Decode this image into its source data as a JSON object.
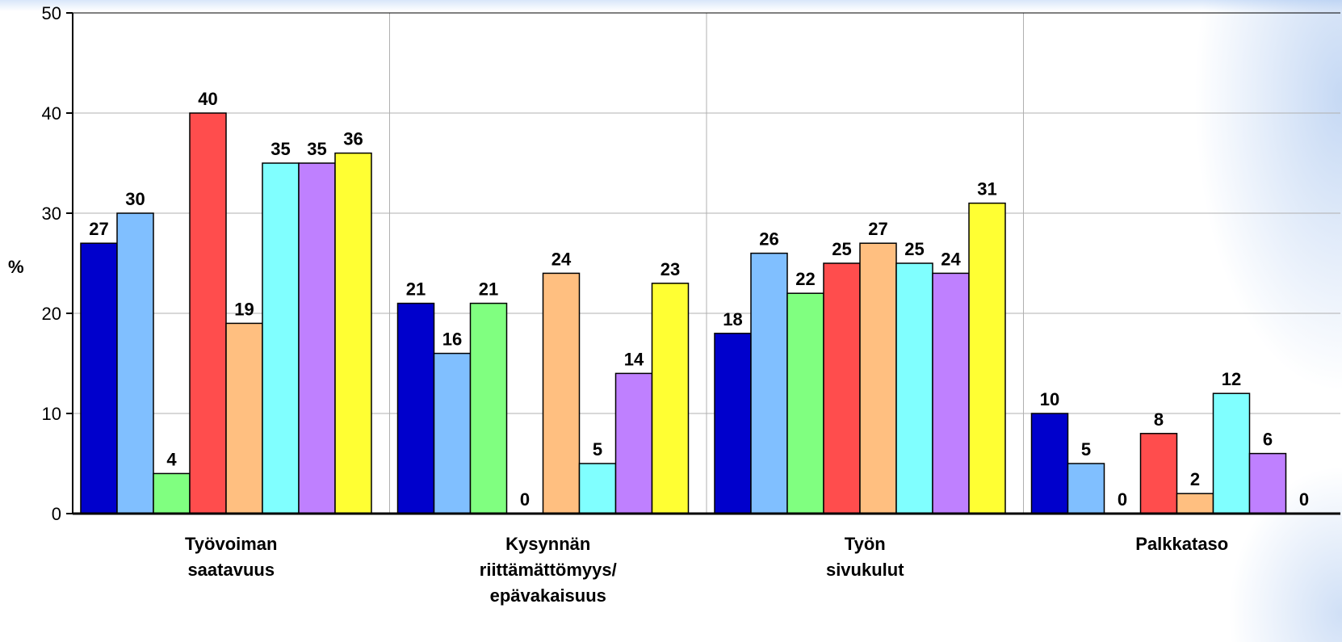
{
  "chart_data": {
    "type": "bar",
    "title": "",
    "xlabel": "",
    "ylabel": "%",
    "ylim": [
      0,
      50
    ],
    "yticks": [
      0,
      10,
      20,
      30,
      40,
      50
    ],
    "grid": true,
    "categories": [
      [
        "Työvoiman",
        "saatavuus"
      ],
      [
        "Kysynnän",
        "riittämättömyys/",
        "epävakaisuus"
      ],
      [
        "Työn",
        "sivukulut"
      ],
      [
        "Palkkataso"
      ]
    ],
    "series": [
      {
        "color": "#0000cc",
        "values": [
          27,
          21,
          18,
          10
        ]
      },
      {
        "color": "#80bfff",
        "values": [
          30,
          16,
          26,
          5
        ]
      },
      {
        "color": "#80ff80",
        "values": [
          4,
          21,
          22,
          0
        ]
      },
      {
        "color": "#ff4d4d",
        "values": [
          40,
          0,
          25,
          8
        ]
      },
      {
        "color": "#ffbf80",
        "values": [
          19,
          24,
          27,
          2
        ]
      },
      {
        "color": "#80ffff",
        "values": [
          35,
          5,
          25,
          12
        ]
      },
      {
        "color": "#bf80ff",
        "values": [
          35,
          14,
          24,
          6
        ]
      },
      {
        "color": "#ffff33",
        "values": [
          36,
          23,
          31,
          0
        ]
      }
    ]
  }
}
